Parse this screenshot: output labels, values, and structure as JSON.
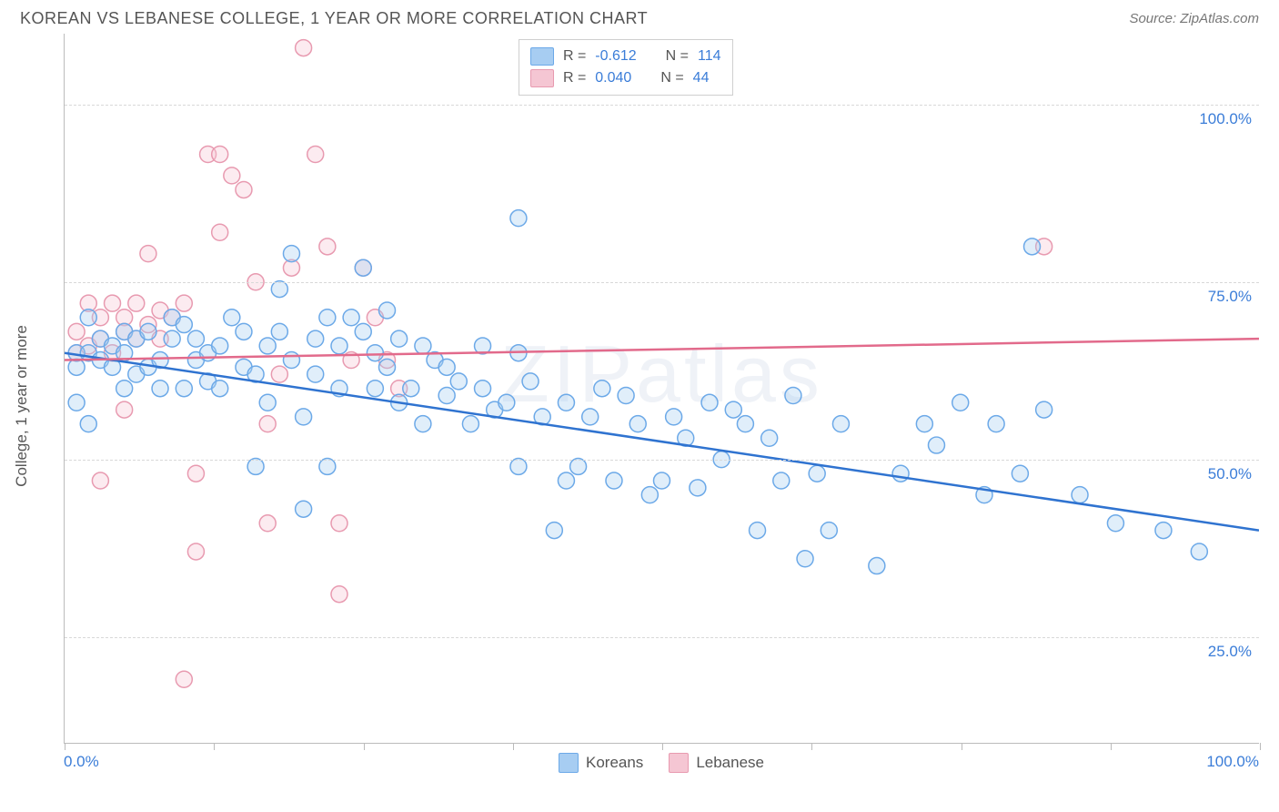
{
  "header": {
    "title": "KOREAN VS LEBANESE COLLEGE, 1 YEAR OR MORE CORRELATION CHART",
    "source": "Source: ZipAtlas.com"
  },
  "watermark": "ZIPatlas",
  "chart": {
    "type": "scatter",
    "ylabel": "College, 1 year or more",
    "xlim": [
      0,
      100
    ],
    "ylim": [
      10,
      110
    ],
    "x_ticks": [
      0,
      12.5,
      25,
      37.5,
      50,
      62.5,
      75,
      87.5,
      100
    ],
    "y_gridlines": [
      25,
      50,
      75,
      100
    ],
    "y_tick_labels": [
      "25.0%",
      "50.0%",
      "75.0%",
      "100.0%"
    ],
    "x_left_label": "0.0%",
    "x_right_label": "100.0%",
    "background_color": "#ffffff",
    "grid_color": "#d8d8d8",
    "axis_color": "#bbbbbb",
    "label_color": "#555555",
    "tick_label_color": "#3b7dd8",
    "marker_radius": 9,
    "marker_fill_opacity": 0.35,
    "trend_width": 2.5,
    "series": {
      "koreans": {
        "label": "Koreans",
        "color_stroke": "#6ca9e8",
        "color_fill": "#a7cdf2",
        "trend_color": "#2f73d0",
        "R": "-0.612",
        "N": "114",
        "trend": {
          "x1": 0,
          "y1": 65,
          "x2": 100,
          "y2": 40
        },
        "points": [
          [
            1,
            58
          ],
          [
            1,
            63
          ],
          [
            1,
            65
          ],
          [
            2,
            65
          ],
          [
            2,
            70
          ],
          [
            2,
            55
          ],
          [
            3,
            64
          ],
          [
            3,
            67
          ],
          [
            4,
            66
          ],
          [
            4,
            63
          ],
          [
            5,
            68
          ],
          [
            5,
            60
          ],
          [
            5,
            65
          ],
          [
            6,
            62
          ],
          [
            6,
            67
          ],
          [
            7,
            68
          ],
          [
            7,
            63
          ],
          [
            8,
            64
          ],
          [
            8,
            60
          ],
          [
            9,
            67
          ],
          [
            9,
            70
          ],
          [
            10,
            69
          ],
          [
            10,
            60
          ],
          [
            11,
            64
          ],
          [
            11,
            67
          ],
          [
            12,
            61
          ],
          [
            12,
            65
          ],
          [
            13,
            66
          ],
          [
            13,
            60
          ],
          [
            14,
            70
          ],
          [
            15,
            63
          ],
          [
            15,
            68
          ],
          [
            16,
            49
          ],
          [
            16,
            62
          ],
          [
            17,
            66
          ],
          [
            17,
            58
          ],
          [
            18,
            74
          ],
          [
            18,
            68
          ],
          [
            19,
            79
          ],
          [
            19,
            64
          ],
          [
            20,
            56
          ],
          [
            20,
            43
          ],
          [
            21,
            62
          ],
          [
            21,
            67
          ],
          [
            22,
            70
          ],
          [
            22,
            49
          ],
          [
            23,
            60
          ],
          [
            23,
            66
          ],
          [
            24,
            70
          ],
          [
            25,
            77
          ],
          [
            25,
            68
          ],
          [
            26,
            60
          ],
          [
            26,
            65
          ],
          [
            27,
            63
          ],
          [
            27,
            71
          ],
          [
            28,
            67
          ],
          [
            28,
            58
          ],
          [
            29,
            60
          ],
          [
            30,
            66
          ],
          [
            30,
            55
          ],
          [
            31,
            64
          ],
          [
            32,
            63
          ],
          [
            32,
            59
          ],
          [
            33,
            61
          ],
          [
            34,
            55
          ],
          [
            35,
            66
          ],
          [
            35,
            60
          ],
          [
            36,
            57
          ],
          [
            37,
            58
          ],
          [
            38,
            84
          ],
          [
            38,
            49
          ],
          [
            39,
            61
          ],
          [
            40,
            56
          ],
          [
            41,
            40
          ],
          [
            42,
            58
          ],
          [
            42,
            47
          ],
          [
            43,
            49
          ],
          [
            44,
            56
          ],
          [
            45,
            60
          ],
          [
            46,
            47
          ],
          [
            47,
            59
          ],
          [
            48,
            55
          ],
          [
            49,
            45
          ],
          [
            50,
            47
          ],
          [
            51,
            56
          ],
          [
            52,
            53
          ],
          [
            53,
            46
          ],
          [
            54,
            58
          ],
          [
            55,
            50
          ],
          [
            56,
            57
          ],
          [
            57,
            55
          ],
          [
            58,
            40
          ],
          [
            59,
            53
          ],
          [
            60,
            47
          ],
          [
            61,
            59
          ],
          [
            62,
            36
          ],
          [
            63,
            48
          ],
          [
            64,
            40
          ],
          [
            65,
            55
          ],
          [
            68,
            35
          ],
          [
            70,
            48
          ],
          [
            72,
            55
          ],
          [
            73,
            52
          ],
          [
            75,
            58
          ],
          [
            77,
            45
          ],
          [
            78,
            55
          ],
          [
            80,
            48
          ],
          [
            82,
            57
          ],
          [
            85,
            45
          ],
          [
            88,
            41
          ],
          [
            92,
            40
          ],
          [
            95,
            37
          ],
          [
            81,
            80
          ],
          [
            38,
            65
          ]
        ]
      },
      "lebanese": {
        "label": "Lebanese",
        "color_stroke": "#e89ab0",
        "color_fill": "#f5c6d3",
        "trend_color": "#e26a8b",
        "R": "0.040",
        "N": "44",
        "trend": {
          "x1": 0,
          "y1": 64,
          "x2": 100,
          "y2": 67
        },
        "points": [
          [
            1,
            65
          ],
          [
            1,
            68
          ],
          [
            2,
            72
          ],
          [
            2,
            66
          ],
          [
            3,
            67
          ],
          [
            3,
            70
          ],
          [
            4,
            72
          ],
          [
            4,
            65
          ],
          [
            5,
            70
          ],
          [
            5,
            68
          ],
          [
            6,
            67
          ],
          [
            6,
            72
          ],
          [
            7,
            79
          ],
          [
            7,
            69
          ],
          [
            8,
            71
          ],
          [
            8,
            67
          ],
          [
            9,
            70
          ],
          [
            10,
            72
          ],
          [
            11,
            48
          ],
          [
            12,
            93
          ],
          [
            13,
            82
          ],
          [
            13,
            93
          ],
          [
            14,
            90
          ],
          [
            15,
            88
          ],
          [
            16,
            75
          ],
          [
            17,
            55
          ],
          [
            17,
            41
          ],
          [
            18,
            62
          ],
          [
            19,
            77
          ],
          [
            20,
            108
          ],
          [
            21,
            93
          ],
          [
            22,
            80
          ],
          [
            23,
            41
          ],
          [
            24,
            64
          ],
          [
            25,
            77
          ],
          [
            26,
            70
          ],
          [
            27,
            64
          ],
          [
            28,
            60
          ],
          [
            11,
            37
          ],
          [
            10,
            19
          ],
          [
            23,
            31
          ],
          [
            3,
            47
          ],
          [
            82,
            80
          ],
          [
            5,
            57
          ]
        ]
      }
    }
  },
  "legend": {
    "top_rows": [
      {
        "series": "koreans",
        "r_label": "R =",
        "n_label": "N ="
      },
      {
        "series": "lebanese",
        "r_label": "R =",
        "n_label": "N ="
      }
    ]
  }
}
